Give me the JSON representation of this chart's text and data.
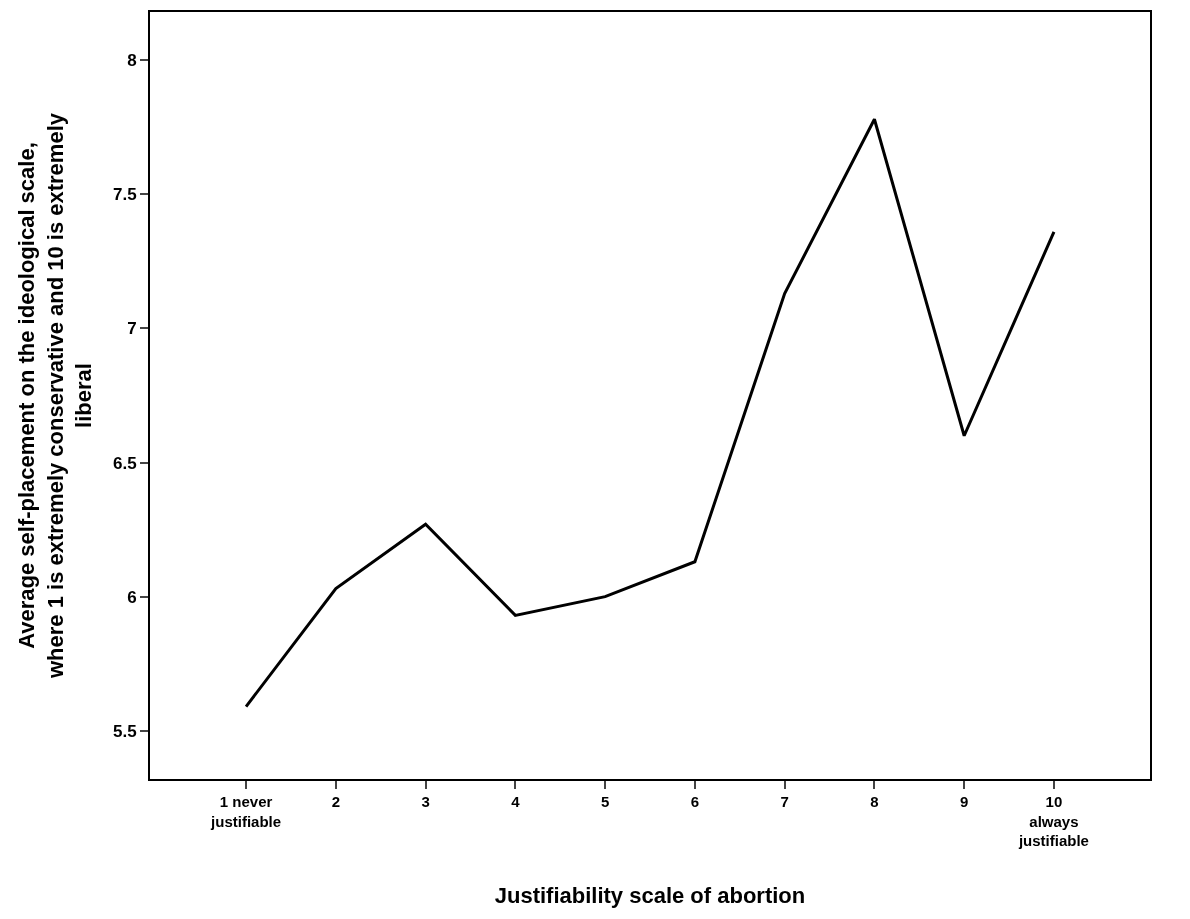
{
  "chart_data": {
    "type": "line",
    "xlabel": "Justifiability scale of abortion",
    "ylabel": "Average self-placement on the ideological scale,\nwhere 1 is extremely conservative and 10 is extremely\nliberal",
    "categories": [
      "1 never\njustifiable",
      "2",
      "3",
      "4",
      "5",
      "6",
      "7",
      "8",
      "9",
      "10\nalways\njustifiable"
    ],
    "series": [
      {
        "color": "#000000",
        "values": [
          5.59,
          6.03,
          6.27,
          5.93,
          6.0,
          6.13,
          7.13,
          7.78,
          6.6,
          7.36
        ]
      }
    ],
    "ylim": [
      5.32,
      8.18
    ],
    "yticks": [
      5.5,
      6,
      6.5,
      7,
      7.5,
      8
    ],
    "line_style": "solid"
  }
}
